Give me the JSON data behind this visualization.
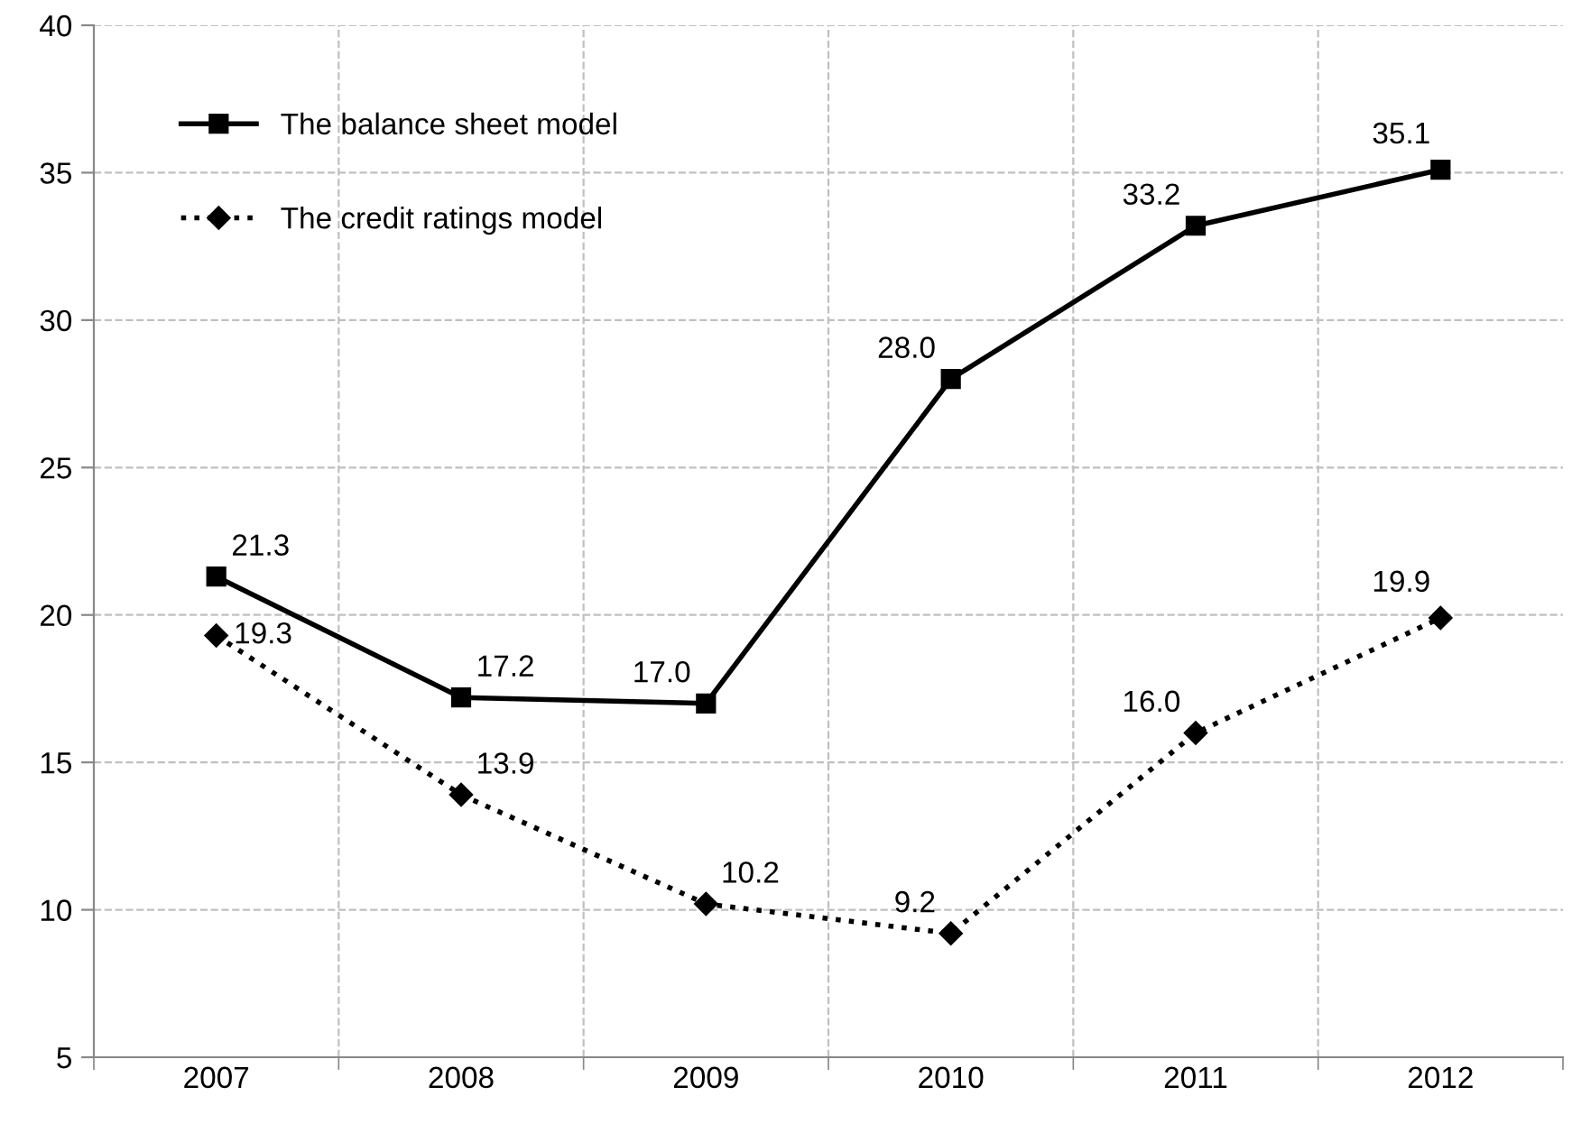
{
  "chart_data": {
    "type": "line",
    "categories": [
      "2007",
      "2008",
      "2009",
      "2010",
      "2011",
      "2012"
    ],
    "series": [
      {
        "name": "The balance sheet model",
        "color": "#000000",
        "values": [
          21.3,
          17.2,
          17.0,
          28.0,
          33.2,
          35.1
        ],
        "value_labels": [
          "21.3",
          "17.2",
          "17.0",
          "28.0",
          "33.2",
          "35.1"
        ],
        "marker": "square",
        "line_style": "solid"
      },
      {
        "name": "The credit ratings model",
        "color": "#000000",
        "values": [
          19.3,
          13.9,
          10.2,
          9.2,
          16.0,
          19.9
        ],
        "value_labels": [
          "19.3",
          "13.9",
          "10.2",
          "9.2",
          "16.0",
          "19.9"
        ],
        "marker": "diamond",
        "line_style": "dotted"
      }
    ],
    "ylim": [
      5,
      40
    ],
    "yticks": [
      5,
      10,
      15,
      20,
      25,
      30,
      35,
      40
    ],
    "grid": true,
    "legend": "top left"
  }
}
